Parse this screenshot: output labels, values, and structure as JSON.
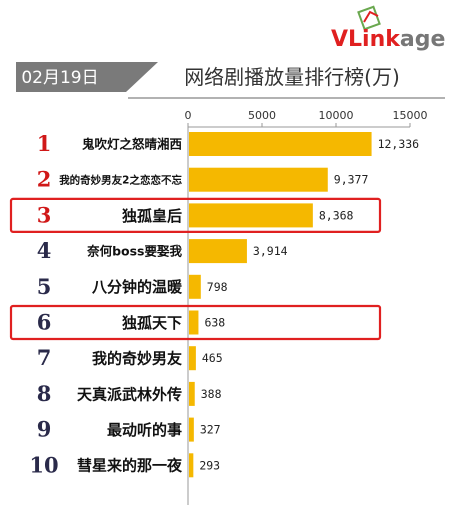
{
  "logo": {
    "prefix": "V",
    "rest": "Link",
    "suffix": "age"
  },
  "date_label": "02月19日",
  "colors": {
    "bar": "#F5B800",
    "highlight": "#E02020",
    "rank_top3": "#D01818",
    "rank_other": "#2a2a4a",
    "date_bg": "#7a7a7a",
    "logo_red": "#E02020",
    "logo_gray": "#777777"
  },
  "chart_data": {
    "type": "bar",
    "orientation": "horizontal",
    "title": "网络剧播放量排行榜(万)",
    "xlim": [
      0,
      15000
    ],
    "xticks": [
      "0",
      "5000",
      "10000",
      "15000"
    ],
    "categories": [
      "鬼吹灯之怒晴湘西",
      "我的奇妙男友2之恋恋不忘",
      "独孤皇后",
      "奈何boss要娶我",
      "八分钟的温暖",
      "独孤天下",
      "我的奇妙男友",
      "天真派武林外传",
      "最动听的事",
      "彗星来的那一夜"
    ],
    "ranks": [
      "1",
      "2",
      "3",
      "4",
      "5",
      "6",
      "7",
      "8",
      "9",
      "10"
    ],
    "values": [
      12336,
      9377,
      8368,
      3914,
      798,
      638,
      465,
      388,
      327,
      293
    ],
    "value_labels": [
      "12,336",
      "9,377",
      "8,368",
      "3,914",
      "798",
      "638",
      "465",
      "388",
      "327",
      "293"
    ],
    "highlighted_ranks": [
      "3",
      "6"
    ],
    "grid": false,
    "legend": false
  }
}
